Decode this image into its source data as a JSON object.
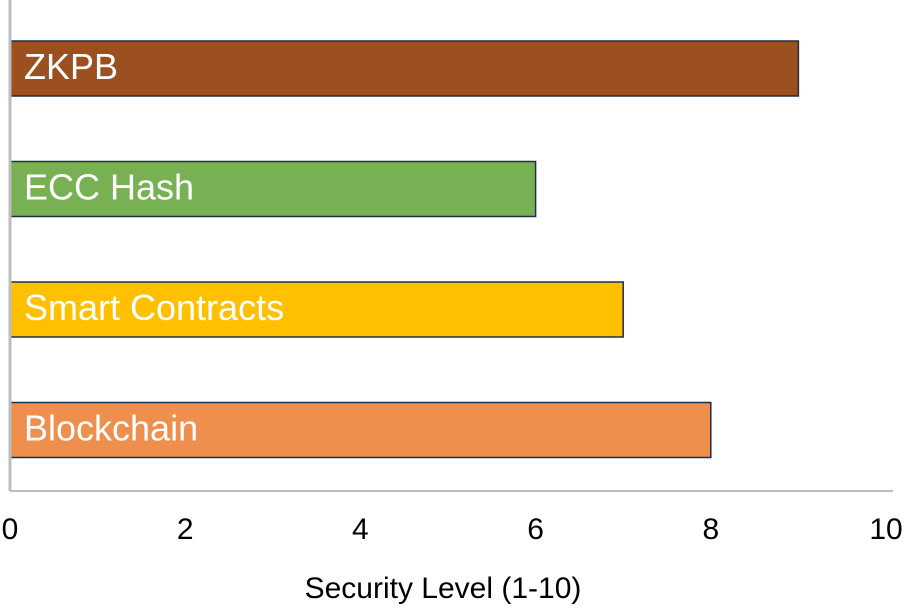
{
  "chart_data": {
    "type": "bar",
    "orientation": "horizontal",
    "categories": [
      "ZKPB",
      "ECC Hash",
      "Smart Contracts",
      "Blockchain"
    ],
    "values": [
      9,
      6,
      7,
      8
    ],
    "colors": [
      "#9c4f1f",
      "#78b154",
      "#ffc000",
      "#ee8f4e"
    ],
    "xlabel": "Security Level (1-10)",
    "xlim": [
      0,
      10
    ],
    "xticks": [
      0,
      2,
      4,
      6,
      8,
      10
    ]
  }
}
